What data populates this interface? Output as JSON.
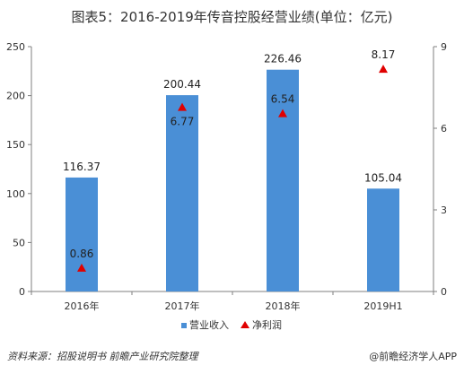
{
  "title": "图表5：2016-2019年传音控股经营业绩(单位：亿元)",
  "source": "资料来源：招股说明书 前瞻产业研究院整理",
  "brand": "@前瞻经济学人APP",
  "colors": {
    "bar": "#4a8fd6",
    "marker": "#e00000",
    "axis": "#7f7f7f"
  },
  "chart_data": {
    "type": "bar",
    "categories": [
      "2016年",
      "2017年",
      "2018年",
      "2019H1"
    ],
    "series": [
      {
        "name": "营业收入",
        "type": "bar",
        "axis": "left",
        "values": [
          116.37,
          200.44,
          226.46,
          105.04
        ],
        "labels": [
          "116.37",
          "200.44",
          "226.46",
          "105.04"
        ]
      },
      {
        "name": "净利润",
        "type": "scatter",
        "axis": "right",
        "values": [
          0.86,
          6.77,
          6.54,
          8.17
        ],
        "labels": [
          "0.86",
          "6.77",
          "6.54",
          "8.17"
        ]
      }
    ],
    "ylim": [
      0,
      250
    ],
    "yticks": [
      "0",
      "50",
      "100",
      "150",
      "200",
      "250"
    ],
    "y2lim": [
      0,
      9
    ],
    "y2ticks": [
      "0",
      "3",
      "6",
      "9"
    ],
    "legend": "bottom-center",
    "grid": false
  }
}
